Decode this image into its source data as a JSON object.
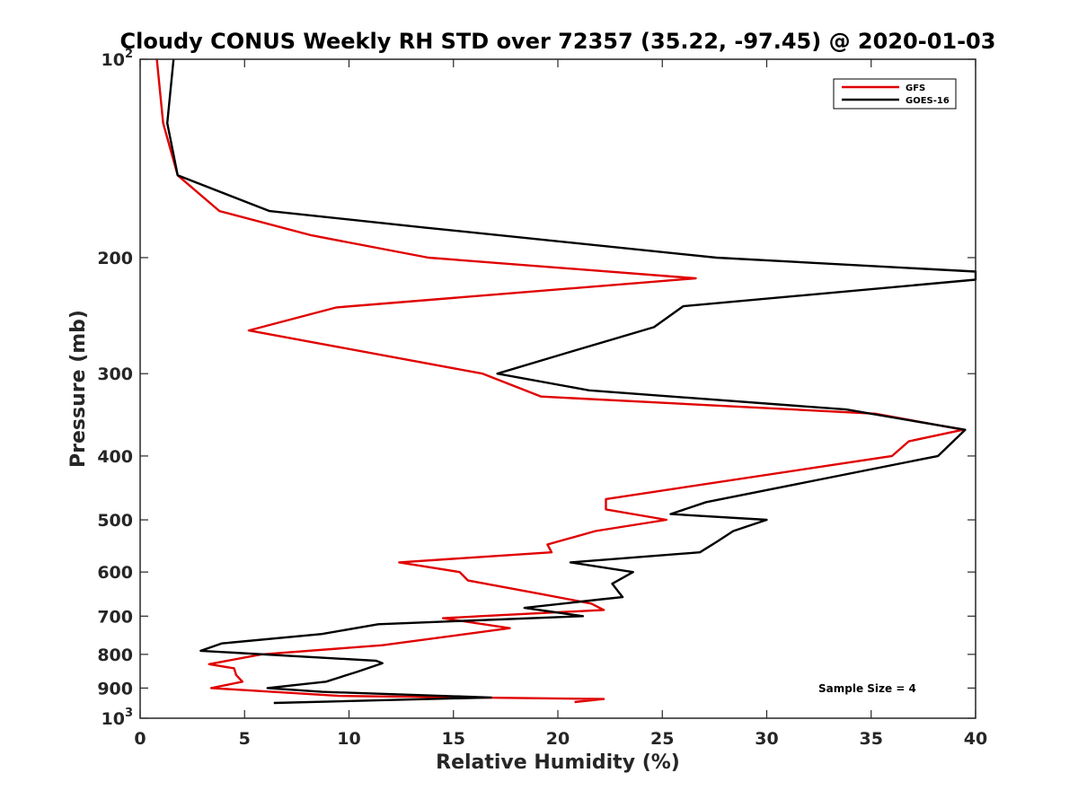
{
  "chart_data": {
    "type": "line",
    "title": "Cloudy CONUS Weekly RH STD over 72357 (35.22, -97.45) @ 2020-01-03",
    "xlabel": "Relative Humidity (%)",
    "ylabel": "Pressure (mb)",
    "xlim": [
      0,
      40
    ],
    "ylim": [
      100,
      1000
    ],
    "y_scale": "log",
    "y_reversed": true,
    "x_ticks": [
      0,
      5,
      10,
      15,
      20,
      25,
      30,
      35,
      40
    ],
    "x_tick_labels": [
      "0",
      "5",
      "10",
      "15",
      "20",
      "25",
      "30",
      "35",
      "40"
    ],
    "y_ticks": [
      100,
      200,
      300,
      400,
      500,
      600,
      700,
      800,
      900,
      1000
    ],
    "y_tick_labels": [
      {
        "base": "10",
        "sup": "2"
      },
      {
        "base": "200"
      },
      {
        "base": "300"
      },
      {
        "base": "400"
      },
      {
        "base": "500"
      },
      {
        "base": "600"
      },
      {
        "base": "700"
      },
      {
        "base": "800"
      },
      {
        "base": "900"
      },
      {
        "base": "10",
        "sup": "3"
      }
    ],
    "legend_position": "top-right",
    "annotation": "Sample Size = 4",
    "series": [
      {
        "name": "GFS",
        "color": "#e00000",
        "points": [
          [
            0.8,
            100
          ],
          [
            1.1,
            125
          ],
          [
            1.8,
            150
          ],
          [
            3.8,
            170
          ],
          [
            8.2,
            185
          ],
          [
            13.8,
            200
          ],
          [
            26.6,
            215
          ],
          [
            9.4,
            238
          ],
          [
            5.2,
            258
          ],
          [
            16.4,
            300
          ],
          [
            19.2,
            325
          ],
          [
            35.2,
            345
          ],
          [
            39.4,
            365
          ],
          [
            36.8,
            380
          ],
          [
            36,
            400
          ],
          [
            22.3,
            465
          ],
          [
            22.3,
            482
          ],
          [
            25.2,
            500
          ],
          [
            21.8,
            520
          ],
          [
            19.5,
            545
          ],
          [
            19.7,
            560
          ],
          [
            12.4,
            580
          ],
          [
            15.3,
            600
          ],
          [
            15.7,
            618
          ],
          [
            19.2,
            648
          ],
          [
            21.6,
            670
          ],
          [
            22.2,
            685
          ],
          [
            16.3,
            700
          ],
          [
            14.5,
            705
          ],
          [
            17.7,
            730
          ],
          [
            11.6,
            775
          ],
          [
            5.8,
            800
          ],
          [
            3.3,
            828
          ],
          [
            4.5,
            840
          ],
          [
            4.6,
            860
          ],
          [
            4.9,
            880
          ],
          [
            3.4,
            900
          ],
          [
            9.5,
            925
          ],
          [
            22.2,
            935
          ],
          [
            20.8,
            945
          ]
        ]
      },
      {
        "name": "GOES-16",
        "color": "#000000",
        "points": [
          [
            1.6,
            100
          ],
          [
            1.3,
            125
          ],
          [
            1.8,
            150
          ],
          [
            6.2,
            170
          ],
          [
            13.6,
            180
          ],
          [
            27.6,
            200
          ],
          [
            40,
            210
          ],
          [
            40,
            216
          ],
          [
            26,
            237
          ],
          [
            24.6,
            255
          ],
          [
            20.6,
            278
          ],
          [
            17.1,
            300
          ],
          [
            21.5,
            318
          ],
          [
            33.8,
            340
          ],
          [
            39.5,
            365
          ],
          [
            38.2,
            400
          ],
          [
            27.1,
            470
          ],
          [
            25.4,
            490
          ],
          [
            30,
            500
          ],
          [
            28.4,
            520
          ],
          [
            27.6,
            540
          ],
          [
            26.8,
            560
          ],
          [
            20.6,
            580
          ],
          [
            23.6,
            600
          ],
          [
            22.6,
            625
          ],
          [
            23.1,
            655
          ],
          [
            22.1,
            660
          ],
          [
            18.4,
            680
          ],
          [
            21.2,
            700
          ],
          [
            11.4,
            720
          ],
          [
            8.7,
            745
          ],
          [
            3.9,
            770
          ],
          [
            2.9,
            790
          ],
          [
            11.3,
            818
          ],
          [
            11.6,
            825
          ],
          [
            10.4,
            850
          ],
          [
            8.9,
            880
          ],
          [
            6.1,
            900
          ],
          [
            8.7,
            912
          ],
          [
            16.8,
            930
          ],
          [
            6.4,
            948
          ]
        ]
      }
    ]
  }
}
